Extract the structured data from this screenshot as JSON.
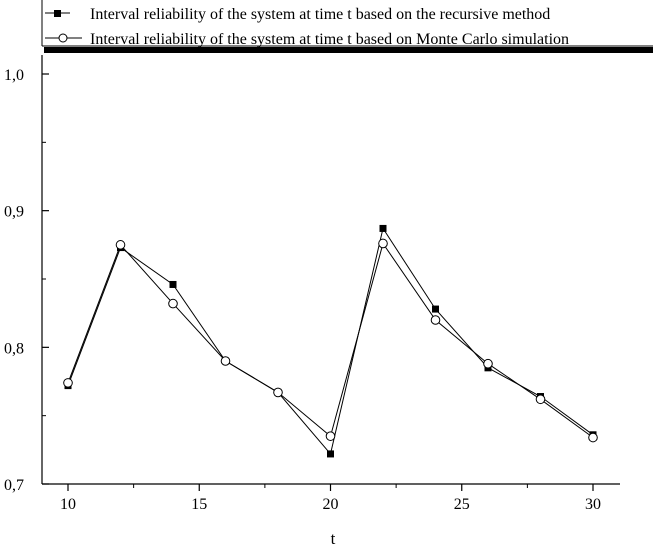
{
  "chart_data": {
    "type": "line",
    "title": "",
    "xlabel": "t",
    "ylabel": "",
    "xlim": [
      9,
      31
    ],
    "ylim": [
      0.7,
      1.0
    ],
    "x_ticks": [
      {
        "value": 10,
        "label": "10"
      },
      {
        "value": 15,
        "label": "15"
      },
      {
        "value": 20,
        "label": "20"
      },
      {
        "value": 25,
        "label": "25"
      },
      {
        "value": 30,
        "label": "30"
      }
    ],
    "y_ticks": [
      {
        "value": 0.7,
        "label": "0,7"
      },
      {
        "value": 0.8,
        "label": "0,8"
      },
      {
        "value": 0.9,
        "label": "0,9"
      },
      {
        "value": 1.0,
        "label": "1,0"
      }
    ],
    "legend_position": "top",
    "series": [
      {
        "name": "Interval reliability of the system at time t based on the recursive method",
        "marker": "filled-square",
        "color": "#000000",
        "x": [
          10,
          12,
          14,
          16,
          18,
          20,
          22,
          24,
          26,
          28,
          30
        ],
        "values": [
          0.772,
          0.873,
          0.846,
          0.79,
          0.767,
          0.722,
          0.887,
          0.828,
          0.785,
          0.764,
          0.736
        ]
      },
      {
        "name": "Interval reliability of the system at time t based on Monte Carlo simulation",
        "marker": "open-circle",
        "color": "#000000",
        "x": [
          10,
          12,
          14,
          16,
          18,
          20,
          22,
          24,
          26,
          28,
          30
        ],
        "values": [
          0.774,
          0.875,
          0.832,
          0.79,
          0.767,
          0.735,
          0.876,
          0.82,
          0.788,
          0.762,
          0.734
        ]
      }
    ]
  }
}
